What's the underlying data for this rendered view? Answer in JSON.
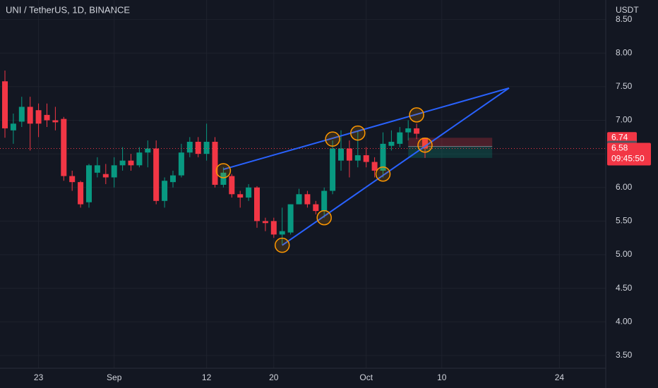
{
  "chart_data": {
    "type": "candlestick",
    "title": "UNI / TetherUS, 1D, BINANCE",
    "axis_unit": "USDT",
    "categories": [
      null,
      null,
      null,
      null,
      "23",
      null,
      null,
      null,
      null,
      null,
      null,
      null,
      null,
      "Sep",
      null,
      null,
      null,
      null,
      null,
      null,
      null,
      null,
      null,
      null,
      "12",
      null,
      null,
      null,
      null,
      null,
      null,
      null,
      "20",
      null,
      null,
      null,
      null,
      null,
      null,
      null,
      null,
      null,
      null,
      "Oct",
      null,
      null,
      null,
      null,
      null,
      null,
      null,
      null,
      "10",
      null,
      null,
      null,
      null,
      null,
      null,
      null,
      null,
      null,
      null,
      null,
      null,
      null,
      "24",
      null,
      null,
      null,
      null,
      null
    ],
    "open": [
      7.58,
      6.85,
      6.98,
      7.2,
      7.15,
      7.08,
      7.0,
      7.02,
      6.17,
      6.08,
      5.78,
      6.22,
      6.2,
      6.15,
      6.33,
      6.4,
      6.33,
      6.52,
      6.58,
      5.8,
      6.08,
      6.18,
      6.52,
      6.68,
      6.5,
      6.68,
      6.04,
      6.17,
      5.9,
      5.85,
      6.0,
      5.5,
      5.5,
      5.3,
      5.33,
      5.75,
      5.9,
      5.75,
      5.65,
      5.95,
      6.4,
      6.58,
      6.4,
      6.48,
      6.38,
      6.25,
      6.62,
      6.65,
      6.82,
      6.88,
      6.74,
      null,
      null,
      null,
      null,
      null,
      null,
      null,
      null,
      null,
      null,
      null,
      null,
      null,
      null,
      null,
      null,
      null,
      null,
      null,
      null,
      null
    ],
    "high": [
      7.74,
      7.1,
      7.35,
      7.35,
      7.25,
      7.25,
      7.2,
      7.05,
      6.25,
      6.1,
      6.35,
      6.45,
      6.35,
      6.45,
      6.6,
      6.5,
      6.6,
      6.7,
      6.7,
      6.15,
      6.25,
      6.65,
      6.75,
      6.75,
      6.95,
      6.75,
      6.3,
      6.2,
      5.95,
      6.05,
      6.02,
      5.55,
      5.55,
      5.7,
      5.75,
      5.98,
      5.95,
      5.8,
      6.0,
      6.7,
      6.85,
      6.7,
      6.85,
      6.6,
      6.45,
      6.82,
      6.85,
      6.9,
      7.0,
      6.95,
      6.74,
      null,
      null,
      null,
      null,
      null,
      null,
      null,
      null,
      null,
      null,
      null,
      null,
      null,
      null,
      null,
      null,
      null,
      null,
      null,
      null,
      null
    ],
    "low": [
      6.74,
      6.65,
      6.9,
      6.55,
      6.75,
      6.9,
      6.85,
      6.1,
      5.95,
      5.7,
      5.7,
      6.15,
      6.05,
      6.0,
      6.25,
      6.25,
      6.3,
      6.3,
      5.75,
      5.7,
      6.0,
      6.15,
      6.45,
      6.45,
      6.4,
      6.0,
      6.0,
      5.85,
      5.7,
      5.8,
      5.4,
      5.35,
      5.25,
      5.15,
      5.3,
      5.75,
      5.7,
      5.6,
      5.55,
      5.9,
      6.25,
      6.15,
      6.3,
      6.3,
      6.15,
      6.15,
      6.55,
      6.6,
      6.7,
      6.72,
      6.44,
      null,
      null,
      null,
      null,
      null,
      null,
      null,
      null,
      null,
      null,
      null,
      null,
      null,
      null,
      null,
      null,
      null,
      null,
      null,
      null,
      null
    ],
    "close": [
      6.88,
      6.95,
      7.2,
      6.95,
      6.95,
      7.0,
      6.97,
      6.17,
      6.08,
      5.75,
      6.33,
      6.33,
      6.15,
      6.33,
      6.4,
      6.33,
      6.52,
      6.58,
      5.8,
      6.1,
      6.18,
      6.52,
      6.68,
      6.5,
      6.68,
      6.04,
      6.22,
      5.9,
      5.85,
      6.0,
      5.5,
      5.47,
      5.3,
      5.35,
      5.75,
      5.9,
      5.75,
      5.65,
      5.95,
      6.58,
      6.58,
      6.4,
      6.48,
      6.38,
      6.25,
      6.65,
      6.68,
      6.82,
      6.88,
      6.8,
      6.58,
      null,
      null,
      null,
      null,
      null,
      null,
      null,
      null,
      null,
      null,
      null,
      null,
      null,
      null,
      null,
      null,
      null,
      null,
      null,
      null,
      null
    ],
    "up_color": "#089981",
    "down_color": "#f23645",
    "ylim": [
      3.31,
      8.79
    ],
    "yticks": [
      {
        "value": 3.5,
        "label": "3.50"
      },
      {
        "value": 4,
        "label": "4.00"
      },
      {
        "value": 4.5,
        "label": "4.50"
      },
      {
        "value": 5,
        "label": "5.00"
      },
      {
        "value": 5.5,
        "label": "5.50"
      },
      {
        "value": 6,
        "label": "6.00"
      },
      {
        "value": 6.5,
        "label": "6.50"
      },
      {
        "value": 7,
        "label": "7.00"
      },
      {
        "value": 7.5,
        "label": "7.50"
      },
      {
        "value": 8,
        "label": "8.00"
      },
      {
        "value": 8.5,
        "label": "8.50"
      }
    ],
    "grid": true,
    "trendlines": [
      {
        "from": {
          "index": 26,
          "price": 6.27
        },
        "to": {
          "index": 60,
          "price": 7.48
        },
        "color": "#2962ff"
      },
      {
        "from": {
          "index": 33,
          "price": 5.14
        },
        "to": {
          "index": 60,
          "price": 7.48
        },
        "color": "#2962ff"
      }
    ],
    "touches": [
      {
        "index": 26,
        "price": 6.25
      },
      {
        "index": 33,
        "price": 5.14
      },
      {
        "index": 38,
        "price": 5.55
      },
      {
        "index": 39,
        "price": 6.72
      },
      {
        "index": 42,
        "price": 6.81
      },
      {
        "index": 45,
        "price": 6.2
      },
      {
        "index": 49,
        "price": 7.08
      },
      {
        "index": 50,
        "price": 6.63
      }
    ],
    "touch_color": "#ff9800",
    "position": {
      "stop": 6.74,
      "entry": 6.61,
      "target": 6.44,
      "from_index": 48,
      "to_index": 58
    },
    "last_price": {
      "value": 6.58,
      "countdown": "09:45:50"
    }
  }
}
